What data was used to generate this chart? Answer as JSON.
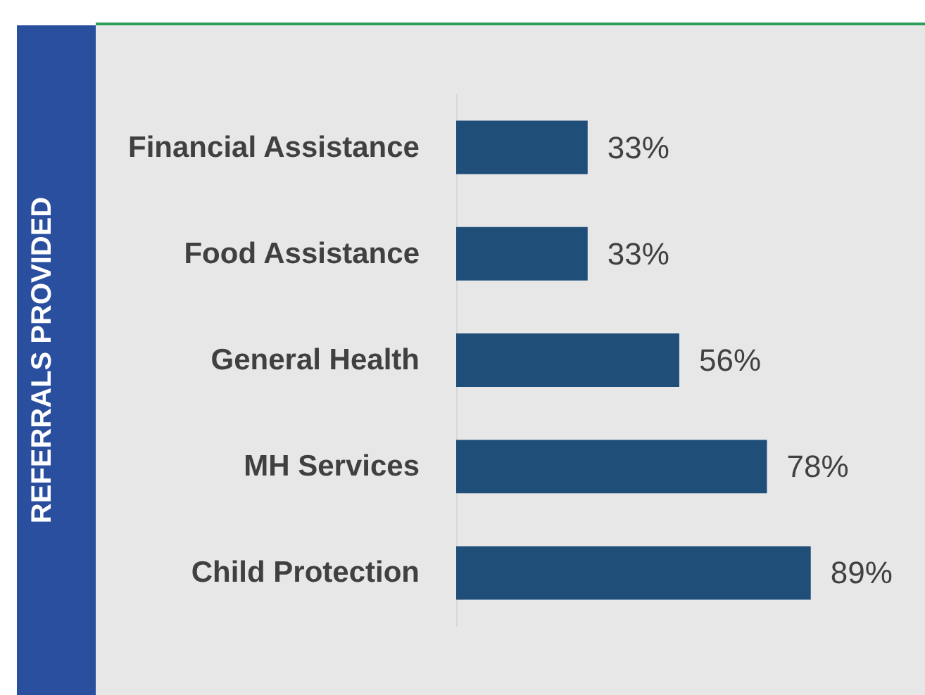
{
  "chart_data": {
    "type": "bar",
    "orientation": "horizontal",
    "ylabel": "REFERRALS PROVIDED",
    "categories": [
      "Financial Assistance",
      "Food Assistance",
      "General Health",
      "MH Services",
      "Child Protection"
    ],
    "values": [
      33,
      33,
      56,
      78,
      89
    ],
    "color": "#1f4e79",
    "value_labels": [
      "33%",
      "33%",
      "56%",
      "78%",
      "89%"
    ]
  }
}
